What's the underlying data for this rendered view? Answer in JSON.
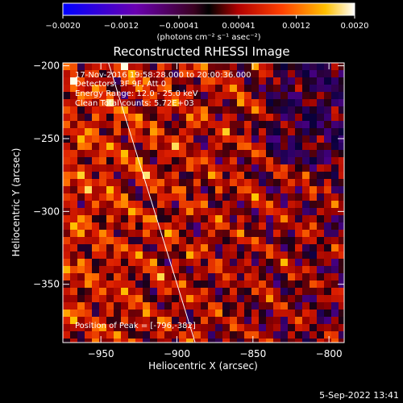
{
  "colorbar": {
    "ticks": [
      "-0.0020",
      "-0.0012",
      "-0.00041",
      "0.00041",
      "0.0012",
      "0.0020"
    ],
    "range": [
      -0.002,
      0.002
    ],
    "units_label": "(photons cm⁻² s⁻¹ asec⁻²)"
  },
  "chart_data": {
    "type": "heatmap",
    "title": "Reconstructed RHESSI Image",
    "xlabel": "Heliocentric X (arcsec)",
    "ylabel": "Heliocentric Y (arcsec)",
    "xlim": [
      -975,
      -790
    ],
    "ylim": [
      -390,
      -198
    ],
    "xticks": [
      -950,
      -900,
      -850,
      -800
    ],
    "yticks": [
      -200,
      -250,
      -300,
      -350
    ],
    "xtick_labels": [
      "−950",
      "−900",
      "−850",
      "−800"
    ],
    "ytick_labels": [
      "−200",
      "−250",
      "−300",
      "−350"
    ],
    "limb_line": [
      [
        -945,
        -198
      ],
      [
        -888,
        -390
      ]
    ],
    "annotations": {
      "time": "17-Nov-2016 19:58:28.000 to 20:00:36.000",
      "detectors": "Detectors: 3F 9F, Att 0",
      "energy": "Energy Range: 12.0 - 25.0 keV",
      "clean": "Clean     Total counts: 5.72E+03",
      "peak": "Position of Peak = [-796,-382]"
    }
  },
  "footer": {
    "date": "5-Sep-2022 13:41"
  }
}
